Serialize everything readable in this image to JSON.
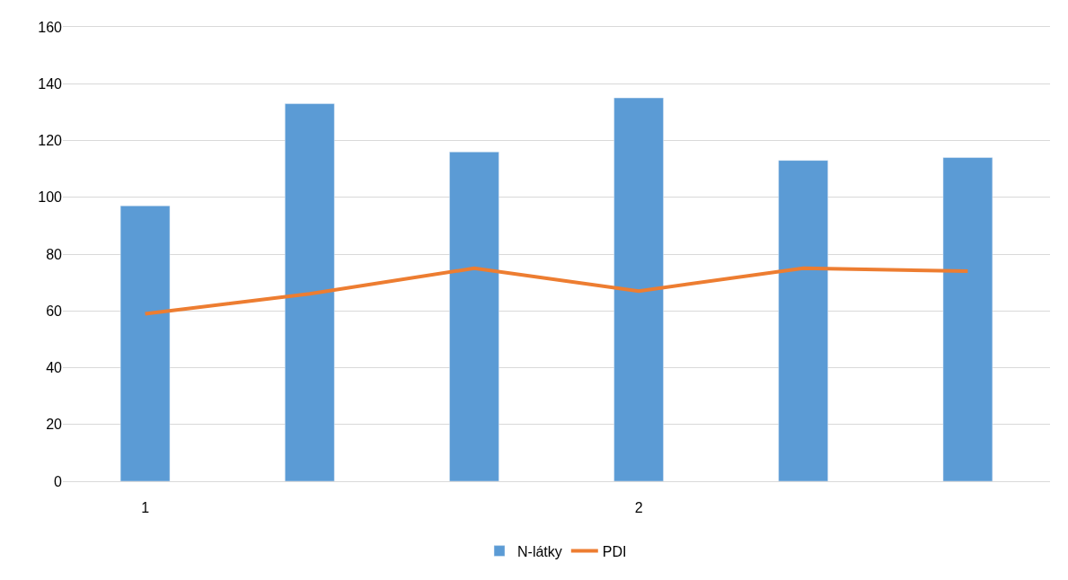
{
  "chart_data": {
    "type": "bar",
    "categories": [
      "1",
      null,
      null,
      "2",
      null,
      null
    ],
    "series": [
      {
        "name": "N-látky",
        "color": "#5b9bd5",
        "values": [
          97,
          133,
          116,
          135,
          113,
          114
        ]
      },
      {
        "name": "PDI",
        "type": "line",
        "color": "#ed7d31",
        "values": [
          59,
          66,
          75,
          67,
          75,
          74
        ]
      }
    ],
    "ylim": [
      0,
      160
    ],
    "yticks": [
      0,
      20,
      40,
      60,
      80,
      100,
      120,
      140,
      160
    ],
    "grid": "y",
    "legend": "bottom",
    "marker": "none",
    "line_style": "solid"
  }
}
